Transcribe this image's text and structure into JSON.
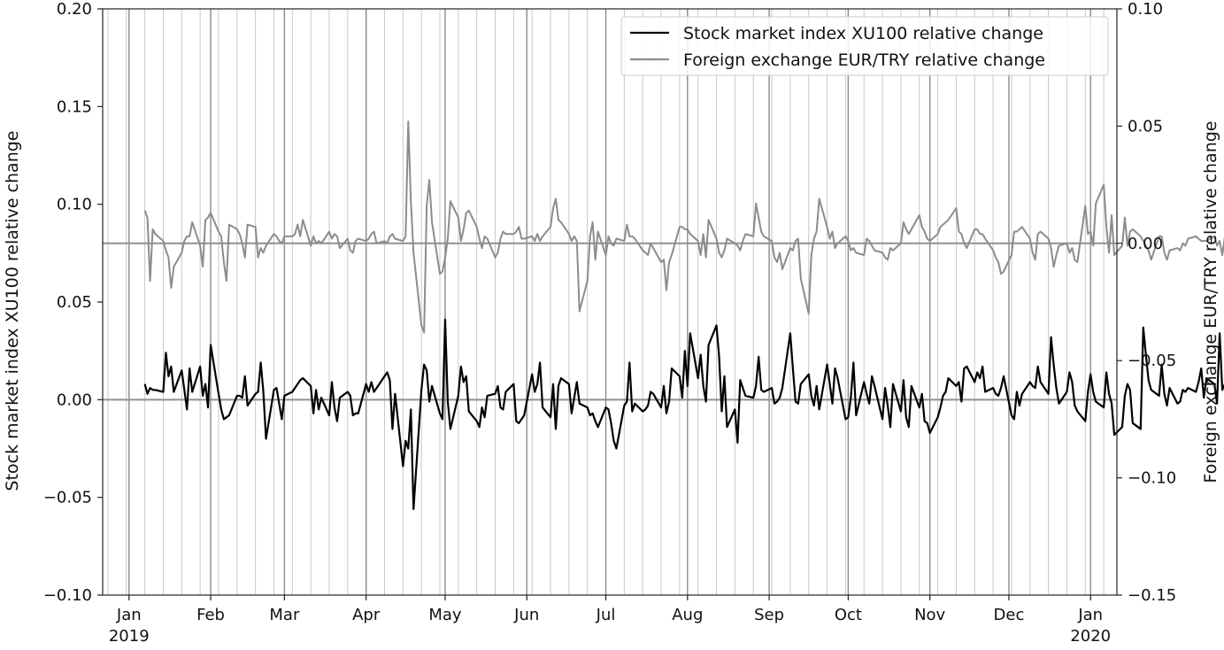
{
  "chart_data": {
    "type": "line",
    "x_axis": {
      "type": "date",
      "range": [
        "2018-12-22",
        "2020-01-11"
      ],
      "ticks": [
        {
          "date": "2019-01-01",
          "label": "Jan",
          "sublabel": "2019"
        },
        {
          "date": "2019-02-01",
          "label": "Feb",
          "sublabel": ""
        },
        {
          "date": "2019-03-01",
          "label": "Mar",
          "sublabel": ""
        },
        {
          "date": "2019-04-01",
          "label": "Apr",
          "sublabel": ""
        },
        {
          "date": "2019-05-01",
          "label": "May",
          "sublabel": ""
        },
        {
          "date": "2019-06-01",
          "label": "Jun",
          "sublabel": ""
        },
        {
          "date": "2019-07-01",
          "label": "Jul",
          "sublabel": ""
        },
        {
          "date": "2019-08-01",
          "label": "Aug",
          "sublabel": ""
        },
        {
          "date": "2019-09-01",
          "label": "Sep",
          "sublabel": ""
        },
        {
          "date": "2019-10-01",
          "label": "Oct",
          "sublabel": ""
        },
        {
          "date": "2019-11-01",
          "label": "Nov",
          "sublabel": ""
        },
        {
          "date": "2019-12-01",
          "label": "Dec",
          "sublabel": ""
        },
        {
          "date": "2020-01-01",
          "label": "Jan",
          "sublabel": "2020"
        }
      ],
      "grid": "weekly vertical lines, bolder at month boundaries"
    },
    "y_left": {
      "label": "Stock market index XU100 relative change",
      "ylim": [
        -0.1,
        0.2
      ],
      "ticks": [
        "−0.10",
        "−0.05",
        "0.00",
        "0.05",
        "0.10",
        "0.15",
        "0.20"
      ],
      "tick_values": [
        -0.1,
        -0.05,
        0.0,
        0.05,
        0.1,
        0.15,
        0.2
      ],
      "zero_line": 0.0
    },
    "y_right": {
      "label": "Foreign exchange EUR/TRY relative change",
      "ylim": [
        -0.15,
        0.1
      ],
      "ticks": [
        "−0.15",
        "−0.10",
        "−0.05",
        "0.00",
        "0.05",
        "0.10"
      ],
      "tick_values": [
        -0.15,
        -0.1,
        -0.05,
        0.0,
        0.05,
        0.1
      ],
      "zero_line": 0.0
    },
    "legend": {
      "position": "top-right",
      "entries": [
        {
          "label": "Stock market index XU100 relative change",
          "color": "#000000"
        },
        {
          "label": "Foreign exchange EUR/TRY relative change",
          "color": "#8c8c8c"
        }
      ]
    },
    "series": [
      {
        "name": "Stock market index XU100 relative change",
        "axis": "left",
        "color": "#000000",
        "start_date": "2019-01-07",
        "end_date": "2019-12-27",
        "values": [
          0.008,
          0.003,
          0.006,
          0.005,
          0.005,
          0.004,
          0.024,
          0.012,
          0.017,
          0.004,
          0.015,
          0.005,
          -0.005,
          0.016,
          0.004,
          0.017,
          0.002,
          0.008,
          -0.004,
          0.028,
          0.003,
          -0.005,
          -0.01,
          -0.009,
          -0.008,
          0.002,
          0.002,
          0.001,
          0.012,
          -0.003,
          0.003,
          0.004,
          0.019,
          0.004,
          -0.02,
          0.005,
          0.006,
          -0.002,
          -0.01,
          0.002,
          0.004,
          0.006,
          0.008,
          0.01,
          0.011,
          0.007,
          -0.007,
          0.005,
          -0.005,
          0.001,
          -0.008,
          0.009,
          -0.004,
          -0.011,
          0.001,
          0.004,
          0.002,
          -0.008,
          -0.007,
          -0.007,
          0.008,
          0.004,
          0.009,
          0.004,
          0.006,
          0.012,
          0.014,
          0.01,
          -0.015,
          0.003,
          -0.034,
          -0.021,
          -0.025,
          -0.005,
          -0.056,
          0.005,
          0.018,
          0.015,
          -0.001,
          0.007,
          -0.007,
          -0.01,
          0.041,
          -0.001,
          -0.015,
          0.002,
          0.017,
          0.009,
          0.012,
          -0.006,
          -0.011,
          -0.014,
          -0.004,
          -0.009,
          0.002,
          0.003,
          0.007,
          -0.004,
          -0.005,
          0.004,
          0.008,
          -0.011,
          -0.012,
          -0.01,
          -0.008,
          0.013,
          0.004,
          0.008,
          0.019,
          -0.004,
          -0.009,
          0.008,
          -0.015,
          0.007,
          0.011,
          0.008,
          -0.007,
          0.001,
          0.009,
          -0.002,
          -0.004,
          -0.008,
          -0.007,
          -0.011,
          -0.014,
          -0.004,
          -0.005,
          -0.012,
          -0.021,
          -0.025,
          -0.003,
          -0.001,
          0.019,
          -0.006,
          -0.002,
          -0.006,
          -0.005,
          -0.003,
          0.004,
          0.003,
          -0.004,
          0.007,
          -0.007,
          -0.001,
          0.016,
          0.012,
          0.001,
          0.025,
          0.007,
          0.034,
          0.011,
          0.023,
          0.007,
          -0.001,
          0.028,
          0.038,
          0.022,
          -0.006,
          0.012,
          -0.014,
          -0.005,
          -0.022,
          0.01,
          0.006,
          0.002,
          0.001,
          0.007,
          0.022,
          0.005,
          0.004,
          0.006,
          -0.002,
          -0.001,
          0.001,
          0.006,
          0.034,
          0.016,
          -0.001,
          -0.002,
          0.008,
          0.013,
          0.002,
          -0.003,
          0.007,
          -0.005,
          0.018,
          0.008,
          -0.002,
          0.016,
          0.011,
          -0.01,
          -0.009,
          0.001,
          0.019,
          -0.008,
          0.009,
          0.003,
          -0.002,
          0.012,
          0.007,
          -0.01,
          0.006,
          -0.003,
          -0.014,
          0.008,
          -0.006,
          0.01,
          -0.009,
          -0.014,
          0.007,
          -0.004,
          0.003,
          -0.011,
          -0.012,
          -0.017,
          -0.009,
          -0.004,
          0.002,
          0.004,
          0.011,
          0.007,
          0.009,
          -0.001,
          0.016,
          0.017,
          0.009,
          0.014,
          0.011,
          0.017,
          0.004,
          0.006,
          0.003,
          0.002,
          0.006,
          0.012,
          -0.008,
          -0.01,
          0.004,
          -0.003,
          0.003,
          0.009,
          0.007,
          0.006,
          0.017,
          0.009,
          0.003,
          0.032,
          0.018,
          0.006,
          -0.002,
          0.004,
          0.014,
          0.009,
          -0.003,
          -0.006,
          -0.011,
          0.004,
          0.013,
          0.004,
          -0.001,
          -0.004,
          0.014,
          0.003,
          -0.002,
          -0.018,
          -0.014,
          0.002,
          0.008,
          0.005,
          -0.012,
          -0.015,
          0.037,
          0.023,
          0.01,
          0.005,
          0.002,
          0.018,
          0.003,
          -0.003,
          0.006,
          -0.002,
          -0.001,
          0.005,
          0.004,
          0.006,
          0.004,
          0.009,
          0.016,
          0.001,
          0.011,
          0.008,
          -0.002,
          0.034,
          0.005,
          0.008,
          0.003,
          0.011,
          -0.003,
          -0.004,
          -0.004,
          0.007,
          0.008,
          0.008,
          -0.004,
          -0.008,
          0.003,
          0.005,
          0.008,
          0.014,
          0.009,
          0.002,
          0.012,
          0.01,
          0.009,
          0.015,
          0.002,
          0.002,
          0.001,
          -0.007,
          0.006,
          0.02,
          0.005,
          0.005,
          0.004,
          0.001,
          0.006,
          0.003,
          -0.001,
          0.009,
          0.007,
          0.005,
          0.006,
          0.004,
          0.001
        ]
      },
      {
        "name": "Foreign exchange EUR/TRY relative change",
        "axis": "right",
        "color": "#8c8c8c",
        "start_date": "2019-01-07",
        "end_date": "2019-12-27",
        "values": [
          0.014,
          0.011,
          -0.016,
          0.006,
          0.004,
          0.001,
          -0.003,
          -0.006,
          -0.019,
          -0.01,
          -0.004,
          0.001,
          0.003,
          0.003,
          0.009,
          -0.001,
          -0.01,
          0.01,
          0.011,
          0.013,
          0.005,
          0.003,
          -0.008,
          -0.016,
          0.008,
          0.006,
          0.004,
          0.0,
          -0.006,
          0.008,
          0.007,
          -0.006,
          -0.002,
          -0.004,
          -0.001,
          0.004,
          0.003,
          0.001,
          0.0,
          0.003,
          0.003,
          0.004,
          0.008,
          0.003,
          0.01,
          -0.001,
          0.003,
          0.0,
          0.001,
          0.0,
          0.005,
          0.002,
          0.004,
          0.003,
          -0.002,
          0.002,
          -0.003,
          -0.004,
          0.001,
          0.002,
          0.001,
          0.002,
          0.004,
          0.005,
          0.0,
          0.001,
          0.0,
          0.003,
          0.004,
          0.002,
          0.001,
          0.003,
          0.052,
          0.018,
          -0.004,
          -0.035,
          -0.038,
          0.016,
          0.027,
          0.009,
          -0.013,
          -0.012,
          -0.006,
          0.002,
          0.018,
          0.011,
          0.001,
          0.006,
          0.013,
          0.014,
          0.007,
          0.002,
          -0.002,
          0.003,
          0.002,
          -0.006,
          -0.004,
          0.002,
          0.005,
          0.004,
          0.004,
          0.005,
          0.007,
          0.002,
          0.002,
          0.003,
          0.001,
          0.004,
          0.001,
          0.003,
          0.007,
          0.015,
          0.019,
          0.01,
          0.009,
          0.004,
          0.001,
          0.003,
          0.001,
          -0.029,
          -0.016,
          0.003,
          0.009,
          -0.007,
          0.005,
          -0.005,
          0.003,
          0.0,
          -0.001,
          0.002,
          0.001,
          0.008,
          0.003,
          0.003,
          0.002,
          -0.003,
          -0.004,
          -0.005,
          0.0,
          -0.002,
          -0.008,
          -0.007,
          -0.02,
          -0.008,
          -0.005,
          0.007,
          0.007,
          0.006,
          0.006,
          0.004,
          0.001,
          -0.005,
          0.004,
          -0.006,
          0.01,
          0.002,
          -0.004,
          -0.006,
          -0.003,
          0.002,
          0.0,
          -0.001,
          -0.003,
          0.001,
          0.004,
          0.003,
          0.017,
          0.011,
          0.005,
          0.003,
          0.001,
          -0.006,
          -0.008,
          -0.004,
          -0.011,
          -0.002,
          -0.003,
          0.001,
          0.002,
          -0.015,
          -0.03,
          -0.005,
          0.002,
          0.005,
          0.019,
          0.007,
          0.002,
          0.005,
          -0.002,
          0.0,
          0.003,
          0.001,
          -0.003,
          -0.002,
          -0.004,
          -0.005,
          0.002,
          0.001,
          -0.001,
          -0.003,
          -0.004,
          -0.006,
          -0.007,
          -0.002,
          -0.003,
          0.0,
          0.009,
          0.006,
          0.004,
          0.006,
          0.012,
          0.007,
          0.005,
          0.002,
          0.001,
          0.004,
          0.007,
          0.008,
          0.009,
          0.01,
          0.015,
          0.005,
          0.004,
          0.0,
          -0.002,
          0.006,
          0.006,
          0.004,
          0.004,
          0.002,
          -0.003,
          -0.006,
          -0.008,
          -0.013,
          -0.012,
          -0.005,
          0.005,
          0.005,
          0.006,
          0.007,
          0.002,
          -0.004,
          -0.007,
          0.004,
          0.005,
          0.002,
          -0.002,
          -0.01,
          -0.005,
          -0.001,
          0.0,
          -0.004,
          -0.002,
          -0.007,
          -0.008,
          0.016,
          0.004,
          0.005,
          -0.001,
          0.017,
          0.025,
          0.007,
          -0.004,
          0.012,
          -0.005,
          -0.001,
          0.011,
          -0.001,
          0.005,
          0.006,
          0.003,
          0.001,
          -0.001,
          -0.003,
          -0.007,
          0.003,
          0.003,
          -0.004,
          -0.007,
          -0.003,
          -0.002,
          -0.003,
          0.0,
          -0.001,
          0.002,
          0.003,
          0.002,
          0.001,
          0.001,
          0.001,
          0.003,
          -0.001,
          0.001,
          -0.005,
          0.003,
          0.001,
          0.0,
          -0.003,
          -0.001,
          0.001,
          0.002,
          -0.004,
          0.002,
          0.001,
          -0.002,
          0.002,
          0.004,
          0.002,
          0.003,
          0.004,
          0.002,
          0.006,
          0.003,
          0.004,
          -0.002,
          -0.004,
          0.001,
          0.002,
          0.005,
          0.003,
          0.002,
          0.003,
          0.002,
          0.003,
          0.001,
          0.003,
          0.002,
          0.012
        ]
      }
    ]
  }
}
